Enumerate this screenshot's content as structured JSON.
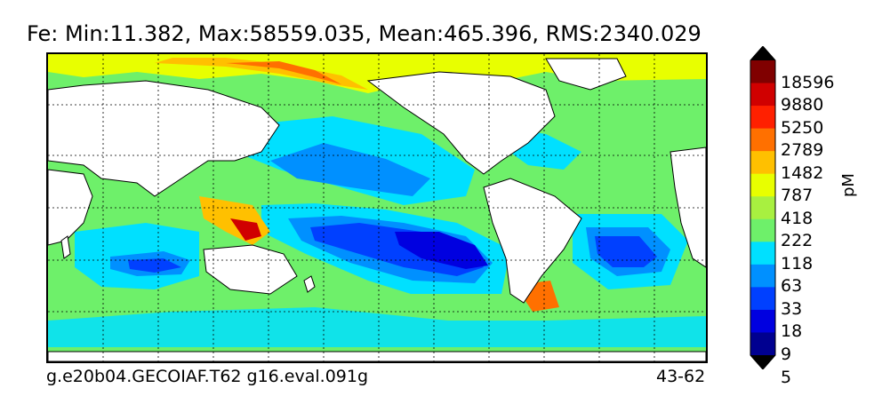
{
  "title": "Fe: Min:11.382, Max:58559.035, Mean:465.396, RMS:2340.029",
  "footer": {
    "case_name": "g.e20b04.GECOIAF.T62 g16.eval.091g",
    "year_range": "43-62"
  },
  "colorbar": {
    "units": "pM",
    "labels": [
      "18596",
      "9880",
      "5250",
      "2789",
      "1482",
      "787",
      "418",
      "222",
      "118",
      "63",
      "33",
      "18",
      "9",
      "5"
    ],
    "colors": [
      "#000090",
      "#0000e0",
      "#0040ff",
      "#0090ff",
      "#00e0ff",
      "#6ef06a",
      "#a8f040",
      "#e8ff00",
      "#ffc000",
      "#ff7000",
      "#ff2000",
      "#d00000",
      "#800000"
    ],
    "under_color": "#000000",
    "over_color": "#000000"
  },
  "map": {
    "land_color": "#ffffff",
    "gridlines": "dashed"
  }
}
